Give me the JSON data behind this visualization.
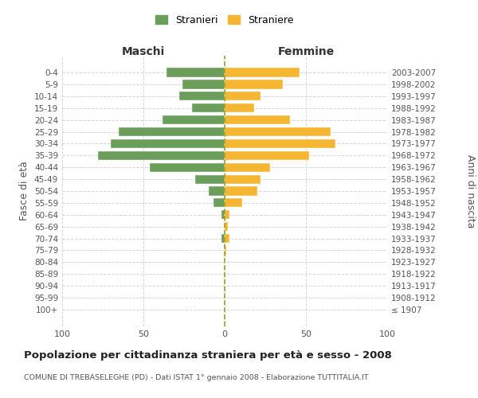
{
  "age_groups": [
    "100+",
    "95-99",
    "90-94",
    "85-89",
    "80-84",
    "75-79",
    "70-74",
    "65-69",
    "60-64",
    "55-59",
    "50-54",
    "45-49",
    "40-44",
    "35-39",
    "30-34",
    "25-29",
    "20-24",
    "15-19",
    "10-14",
    "5-9",
    "0-4"
  ],
  "birth_years": [
    "≤ 1907",
    "1908-1912",
    "1913-1917",
    "1918-1922",
    "1923-1927",
    "1928-1932",
    "1933-1937",
    "1938-1942",
    "1943-1947",
    "1948-1952",
    "1953-1957",
    "1958-1962",
    "1963-1967",
    "1968-1972",
    "1973-1977",
    "1978-1982",
    "1983-1987",
    "1988-1992",
    "1993-1997",
    "1998-2002",
    "2003-2007"
  ],
  "maschi": [
    0,
    0,
    0,
    0,
    0,
    0,
    2,
    0,
    2,
    7,
    10,
    18,
    46,
    78,
    70,
    65,
    38,
    20,
    28,
    26,
    36
  ],
  "femmine": [
    0,
    0,
    0,
    0,
    0,
    1,
    3,
    2,
    3,
    11,
    20,
    22,
    28,
    52,
    68,
    65,
    40,
    18,
    22,
    36,
    46
  ],
  "male_color": "#6a9e5a",
  "female_color": "#f5b731",
  "center_line_color": "#a0a020",
  "background_color": "#ffffff",
  "grid_color": "#cccccc",
  "text_color": "#555555",
  "title": "Popolazione per cittadinanza straniera per età e sesso - 2008",
  "subtitle": "COMUNE DI TREBASELEGHE (PD) - Dati ISTAT 1° gennaio 2008 - Elaborazione TUTTITALIA.IT",
  "xlabel_left": "Maschi",
  "xlabel_right": "Femmine",
  "ylabel_left": "Fasce di età",
  "ylabel_right": "Anni di nascita",
  "legend_male": "Stranieri",
  "legend_female": "Straniere",
  "xlim": 100
}
